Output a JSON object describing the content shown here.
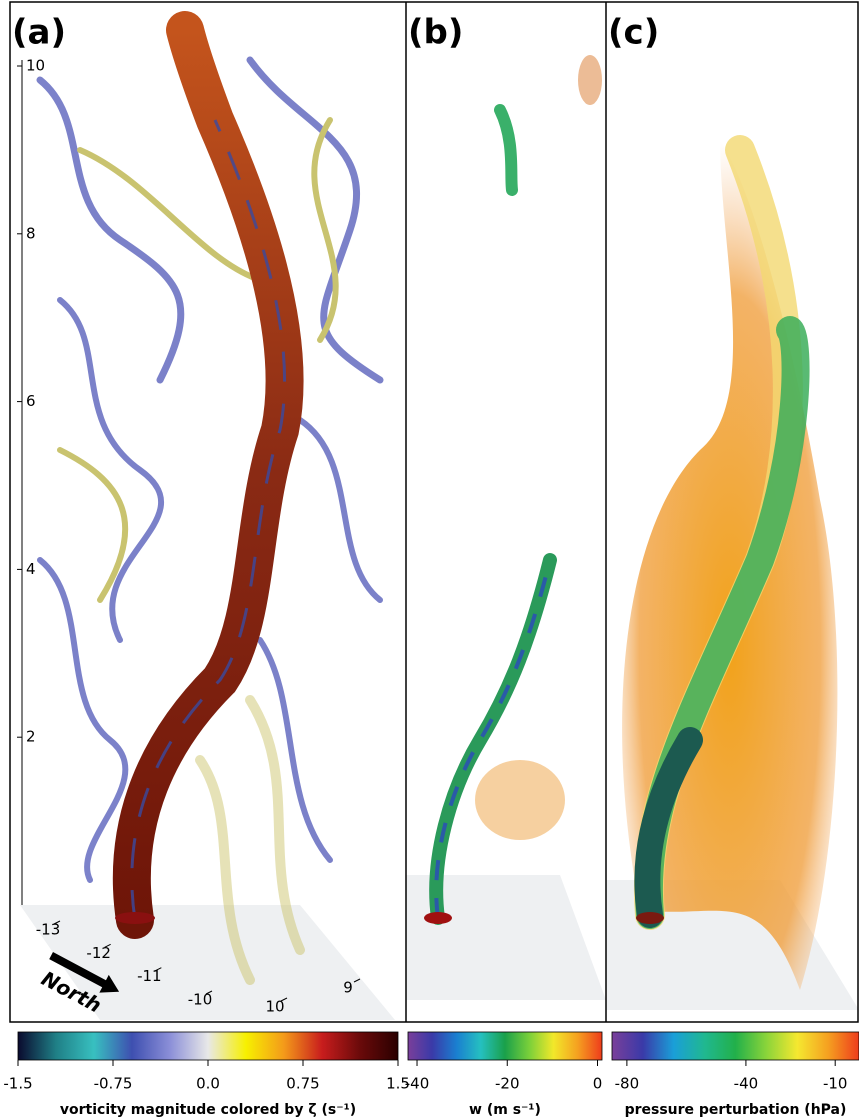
{
  "panels": [
    {
      "label": "(a)"
    },
    {
      "label": "(b)"
    },
    {
      "label": "(c)"
    }
  ],
  "z_axis": {
    "ticks": [
      2,
      4,
      6,
      8,
      10
    ],
    "lim": [
      0,
      10
    ]
  },
  "ground_axes": {
    "y_ticks": [
      -13,
      -12,
      -11,
      -10
    ],
    "x_ticks": [
      10,
      9
    ],
    "direction_label": "North"
  },
  "colorbars": [
    {
      "label": "vorticity magnitude colored by ζ (s⁻¹)",
      "lim": [
        -1.5,
        1.5
      ],
      "ticks": [
        -1.5,
        -0.75,
        {
          "value": 0,
          "label": "0.0"
        },
        0.75,
        1.5
      ],
      "colors": [
        "#0a0a2e",
        "#1f7f86",
        "#38c0c0",
        "#3e4fb0",
        "#8b8fd8",
        "#e8e8e8",
        "#f7f000",
        "#f49a1a",
        "#c81d1d",
        "#6a0a0a",
        "#2a0000"
      ]
    },
    {
      "label": "w (m s⁻¹)",
      "lim": [
        -42,
        1
      ],
      "ticks": [
        -40,
        -20,
        0
      ],
      "colors": [
        "#7a3f9a",
        "#3a3aa8",
        "#1a7fd0",
        "#25c0c0",
        "#1aa04a",
        "#7ad03a",
        "#f2e82a",
        "#f5a020",
        "#ee3c1c"
      ]
    },
    {
      "label": "pressure perturbation (hPa)",
      "lim": [
        -85,
        -2
      ],
      "ticks": [
        -80,
        -40,
        -10
      ],
      "colors": [
        "#7a3f9a",
        "#3a3aa8",
        "#1a9fd8",
        "#20b890",
        "#22b04a",
        "#8ad43a",
        "#f5e830",
        "#f5a020",
        "#ee3c1c"
      ]
    }
  ]
}
